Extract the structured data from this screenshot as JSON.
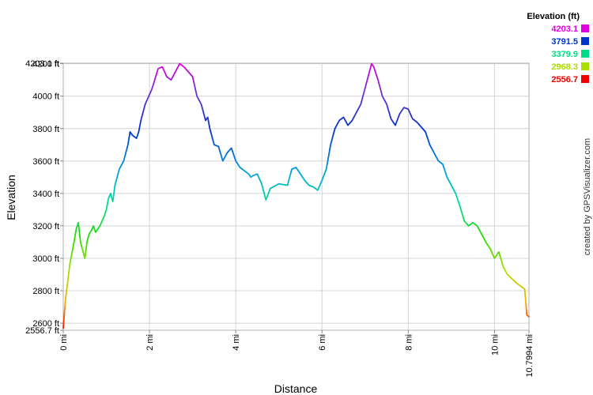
{
  "chart_data": {
    "type": "line",
    "title": "",
    "xlabel": "Distance",
    "ylabel": "Elevation",
    "x_unit": "mi",
    "y_unit": "ft",
    "xlim": [
      0,
      10.7994
    ],
    "ylim": [
      2556.7,
      4203.1
    ],
    "grid": true,
    "y_ticks": [
      {
        "value": 2556.7,
        "label": "2556.7 ft"
      },
      {
        "value": 2600,
        "label": "2600 ft"
      },
      {
        "value": 2800,
        "label": "2800 ft"
      },
      {
        "value": 3000,
        "label": "3000 ft"
      },
      {
        "value": 3200,
        "label": "3200 ft"
      },
      {
        "value": 3400,
        "label": "3400 ft"
      },
      {
        "value": 3600,
        "label": "3600 ft"
      },
      {
        "value": 3800,
        "label": "3800 ft"
      },
      {
        "value": 4000,
        "label": "4000 ft"
      },
      {
        "value": 4200,
        "label": "4200 ft"
      },
      {
        "value": 4203.1,
        "label": "4203.1 ft"
      }
    ],
    "x_ticks": [
      {
        "value": 0,
        "label": "0 mi"
      },
      {
        "value": 2,
        "label": "2 mi"
      },
      {
        "value": 4,
        "label": "4 mi"
      },
      {
        "value": 6,
        "label": "6 mi"
      },
      {
        "value": 8,
        "label": "8 mi"
      },
      {
        "value": 10,
        "label": "10 mi"
      },
      {
        "value": 10.7994,
        "label": "10.7994 mi"
      }
    ],
    "legend": {
      "title": "Elevation (ft)",
      "placement": "top-right",
      "entries": [
        {
          "label": "4203.1",
          "color": "#e000e0"
        },
        {
          "label": "3791.5",
          "color": "#0033cc"
        },
        {
          "label": "3379.9",
          "color": "#00dd88"
        },
        {
          "label": "2968.3",
          "color": "#aadd00"
        },
        {
          "label": "2556.7",
          "color": "#ee0000"
        }
      ]
    },
    "series": [
      {
        "x": [
          0,
          0.02,
          0.05,
          0.1,
          0.15,
          0.2,
          0.25,
          0.3,
          0.35,
          0.4,
          0.45,
          0.5,
          0.55,
          0.6,
          0.65,
          0.7,
          0.75,
          0.8,
          0.85,
          0.9,
          0.95,
          1.0,
          1.05,
          1.1,
          1.15,
          1.2,
          1.3,
          1.4,
          1.5,
          1.55,
          1.6,
          1.7,
          1.75,
          1.8,
          1.9,
          2.0,
          2.05,
          2.1,
          2.2,
          2.3,
          2.4,
          2.5,
          2.6,
          2.7,
          2.8,
          2.9,
          3.0,
          3.1,
          3.2,
          3.25,
          3.3,
          3.35,
          3.4,
          3.5,
          3.6,
          3.7,
          3.8,
          3.9,
          4.0,
          4.1,
          4.2,
          4.3,
          4.35,
          4.4,
          4.5,
          4.6,
          4.7,
          4.8,
          5.0,
          5.2,
          5.25,
          5.3,
          5.4,
          5.5,
          5.6,
          5.7,
          5.8,
          5.9,
          6.0,
          6.1,
          6.2,
          6.3,
          6.4,
          6.5,
          6.6,
          6.7,
          6.8,
          6.9,
          7.0,
          7.1,
          7.15,
          7.2,
          7.3,
          7.4,
          7.5,
          7.6,
          7.7,
          7.8,
          7.9,
          8.0,
          8.1,
          8.2,
          8.3,
          8.4,
          8.5,
          8.6,
          8.7,
          8.8,
          8.9,
          9.0,
          9.1,
          9.2,
          9.3,
          9.4,
          9.5,
          9.6,
          9.7,
          9.8,
          9.9,
          10.0,
          10.1,
          10.2,
          10.3,
          10.5,
          10.7,
          10.75,
          10.7994
        ],
        "y": [
          2570,
          2640,
          2740,
          2850,
          2960,
          3030,
          3100,
          3180,
          3220,
          3100,
          3050,
          3000,
          3100,
          3150,
          3170,
          3200,
          3160,
          3180,
          3200,
          3230,
          3260,
          3300,
          3370,
          3400,
          3350,
          3450,
          3550,
          3600,
          3700,
          3780,
          3760,
          3740,
          3780,
          3850,
          3950,
          4010,
          4040,
          4080,
          4170,
          4180,
          4120,
          4100,
          4150,
          4200,
          4180,
          4150,
          4120,
          4000,
          3950,
          3900,
          3850,
          3870,
          3800,
          3700,
          3690,
          3600,
          3650,
          3680,
          3600,
          3560,
          3540,
          3520,
          3500,
          3510,
          3520,
          3460,
          3360,
          3430,
          3460,
          3450,
          3500,
          3550,
          3560,
          3520,
          3480,
          3450,
          3440,
          3420,
          3480,
          3550,
          3700,
          3800,
          3850,
          3870,
          3820,
          3850,
          3900,
          3950,
          4050,
          4150,
          4200,
          4180,
          4100,
          4000,
          3950,
          3860,
          3820,
          3890,
          3930,
          3920,
          3860,
          3840,
          3810,
          3780,
          3700,
          3650,
          3600,
          3580,
          3500,
          3450,
          3400,
          3320,
          3230,
          3200,
          3220,
          3200,
          3150,
          3100,
          3060,
          3000,
          3040,
          2950,
          2900,
          2850,
          2810,
          2650,
          2640
        ]
      }
    ]
  },
  "side_text": "created by GPSVisualizer.com"
}
